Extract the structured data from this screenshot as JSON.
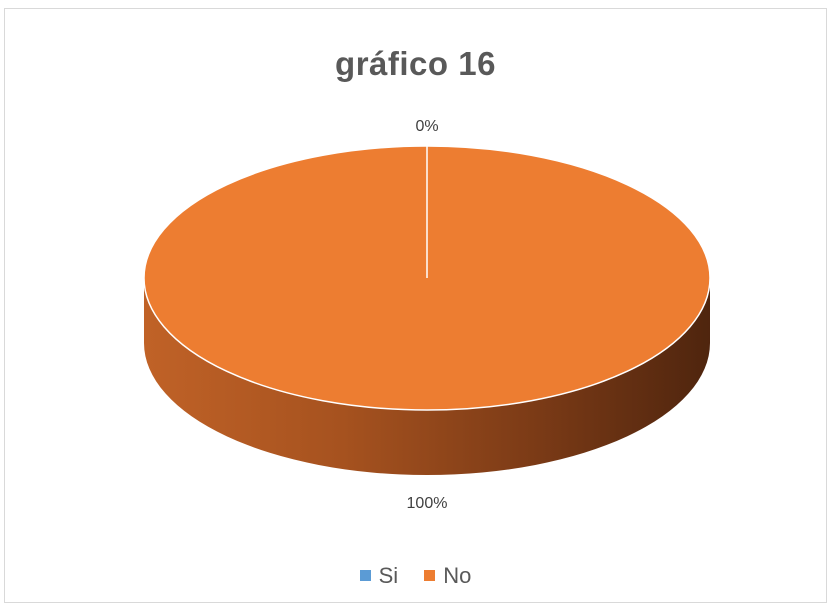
{
  "chart_data": {
    "type": "pie",
    "title": "gráfico 16",
    "categories": [
      "Si",
      "No"
    ],
    "values": [
      0,
      100
    ],
    "data_labels": [
      "0%",
      "100%"
    ],
    "colors": [
      "#5b9bd5",
      "#ed7d31"
    ],
    "style": "3d",
    "legend": "bottom"
  }
}
